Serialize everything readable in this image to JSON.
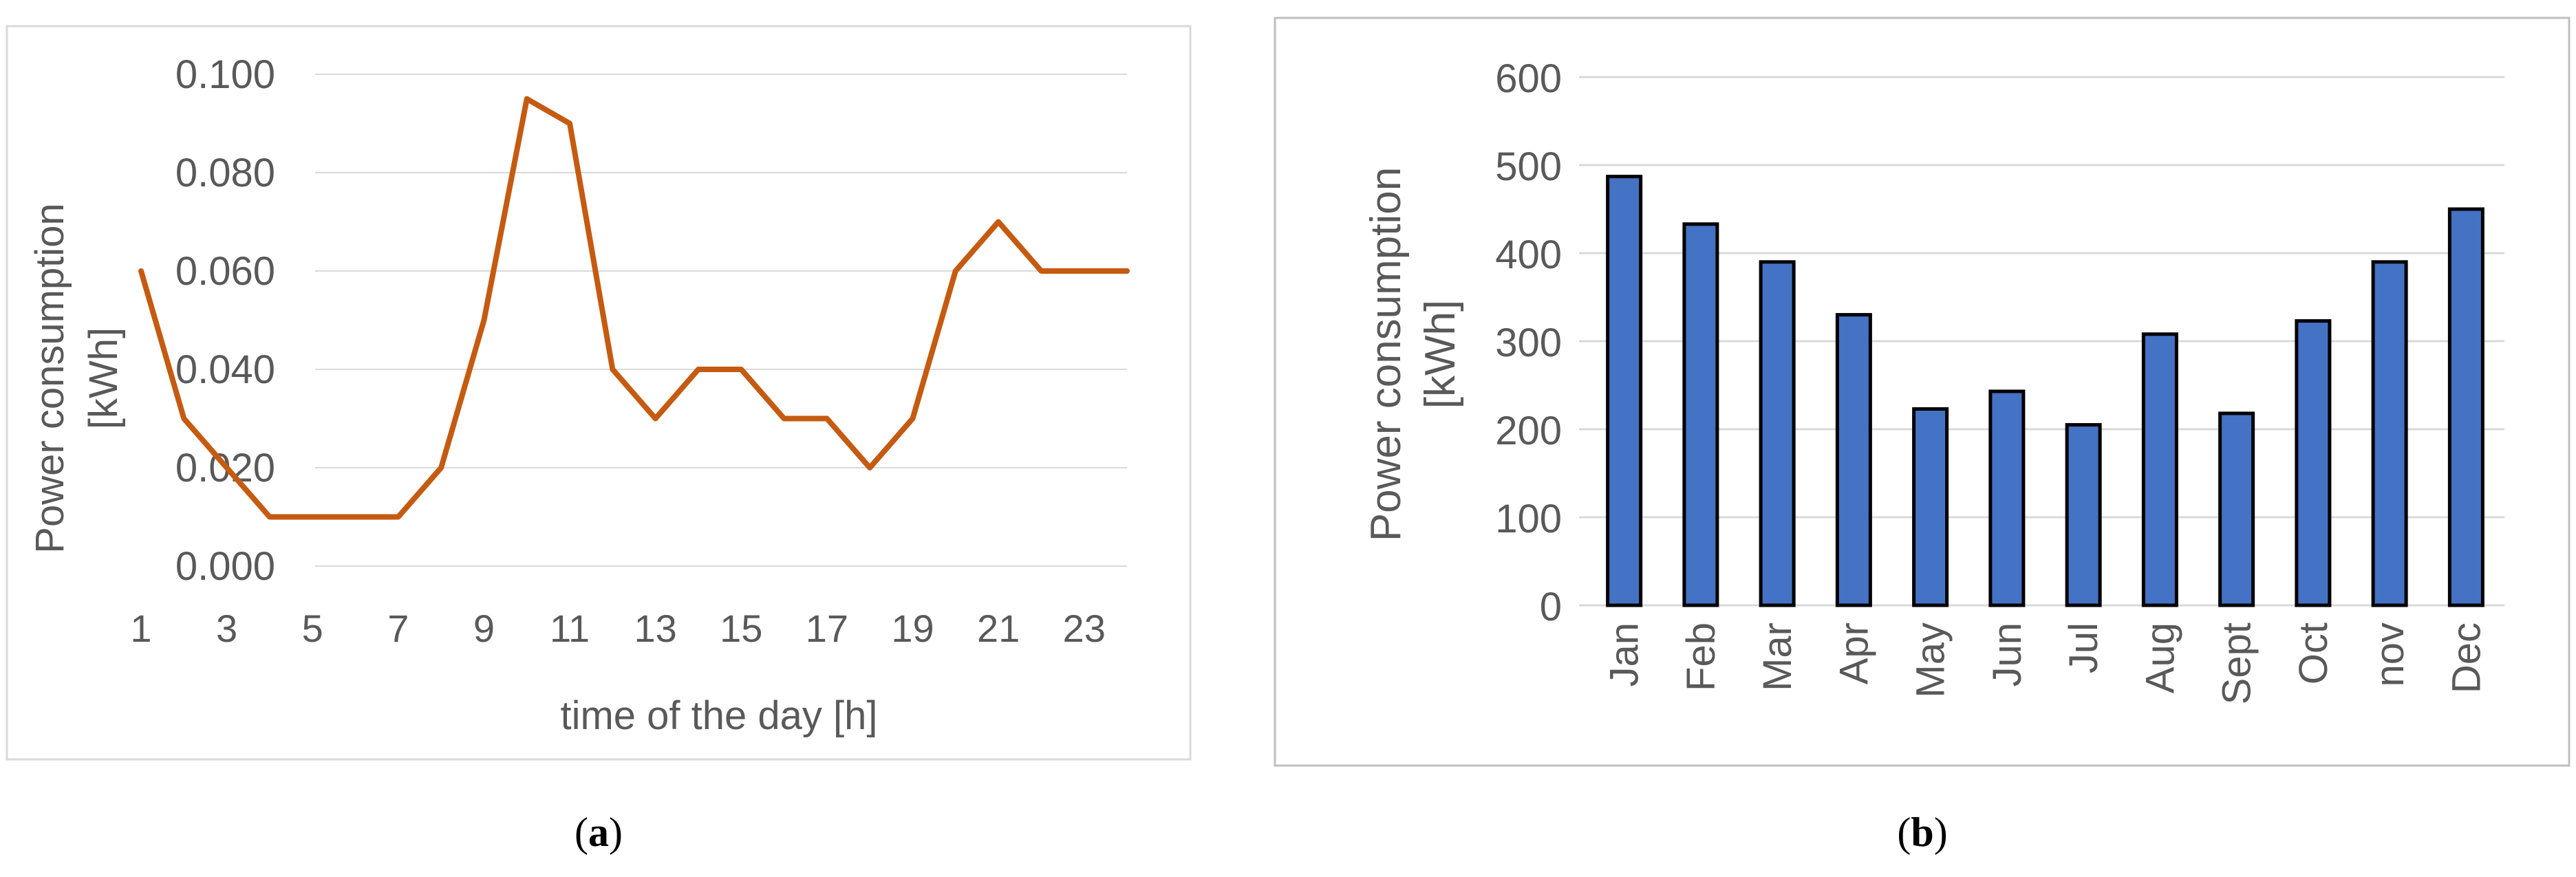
{
  "colors": {
    "line": "#C55A11",
    "bar_fill": "#4472C4",
    "bar_stroke": "#000000",
    "grid": "#D9D9D9",
    "axis_text": "#595959",
    "border": "#D9D9D9"
  },
  "chart_data": [
    {
      "type": "line",
      "x": [
        1,
        2,
        3,
        4,
        5,
        6,
        7,
        8,
        9,
        10,
        11,
        12,
        13,
        14,
        15,
        16,
        17,
        18,
        19,
        20,
        21,
        22,
        23,
        24
      ],
      "xticklabels": [
        "1",
        "3",
        "5",
        "7",
        "9",
        "11",
        "13",
        "15",
        "17",
        "19",
        "21",
        "23"
      ],
      "series": [
        {
          "values": [
            0.06,
            0.03,
            0.02,
            0.01,
            0.01,
            0.01,
            0.01,
            0.02,
            0.05,
            0.095,
            0.09,
            0.04,
            0.03,
            0.04,
            0.04,
            0.03,
            0.03,
            0.02,
            0.03,
            0.06,
            0.07,
            0.06,
            0.06,
            0.06
          ]
        }
      ],
      "xlabel": "time of the day [h]",
      "ylabel_lines": [
        "Power consumption",
        "[kWh]"
      ],
      "yticks": [
        "0.000",
        "0.020",
        "0.040",
        "0.060",
        "0.080",
        "0.100"
      ],
      "ylim": [
        0,
        0.1
      ],
      "grid": true,
      "caption": "a"
    },
    {
      "type": "bar",
      "categories": [
        "Jan",
        "Feb",
        "Mar",
        "Apr",
        "May",
        "Jun",
        "Jul",
        "Aug",
        "Sept",
        "Oct",
        "nov",
        "Dec"
      ],
      "values": [
        487,
        433,
        390,
        330,
        223,
        243,
        205,
        308,
        218,
        323,
        390,
        450
      ],
      "ylabel_lines": [
        "Power consumption",
        "[kWh]"
      ],
      "yticks": [
        "0",
        "100",
        "200",
        "300",
        "400",
        "500",
        "600"
      ],
      "ylim": [
        0,
        600
      ],
      "grid": true,
      "caption": "b"
    }
  ]
}
